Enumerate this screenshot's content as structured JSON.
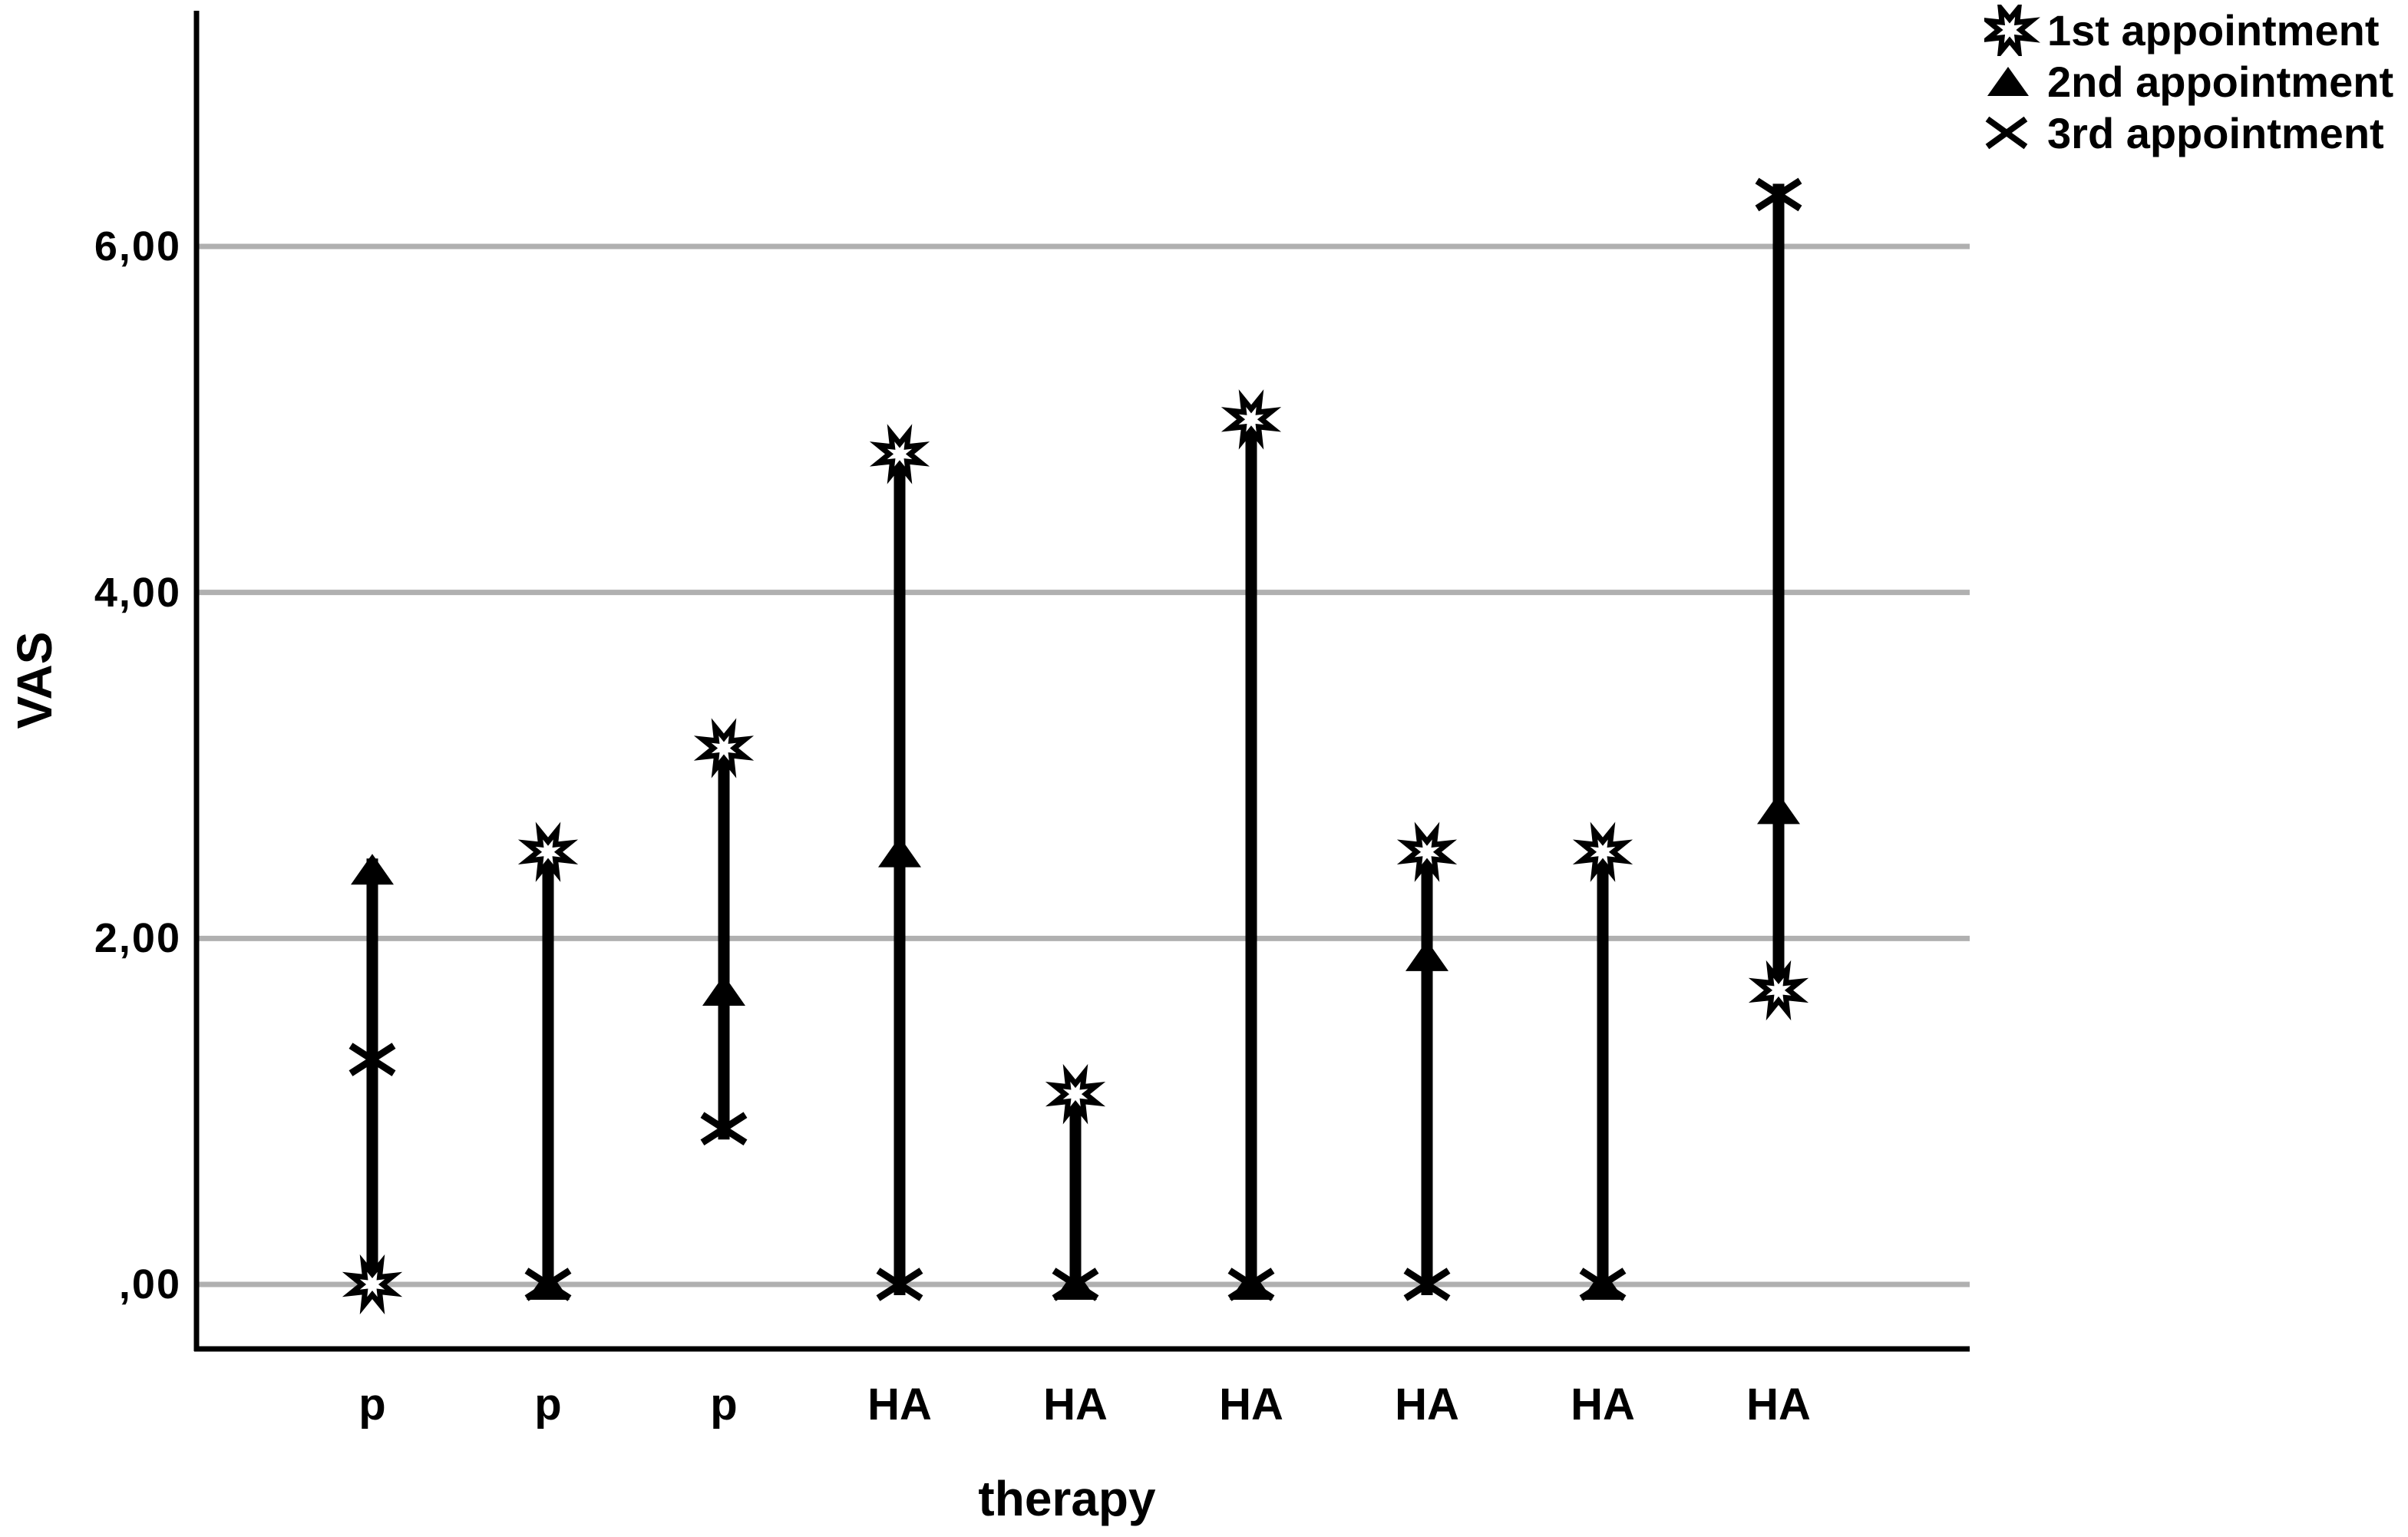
{
  "figure": {
    "background_color": "#ffffff",
    "text_color": "#000000",
    "gridline_color": "#b0b0b0",
    "line_color": "#000000"
  },
  "chart_data": {
    "type": "scatter",
    "subtype": "drop-line",
    "title": "",
    "xlabel": "therapy",
    "ylabel": "VAS",
    "categories": [
      "p",
      "p",
      "p",
      "HA",
      "HA",
      "HA",
      "HA",
      "HA",
      "HA"
    ],
    "series": [
      {
        "name": "1st appointment",
        "marker": "burst-star",
        "values": [
          0,
          2.5,
          3.1,
          4.8,
          1.1,
          5,
          2.5,
          2.5,
          1.7
        ]
      },
      {
        "name": "2nd appointment",
        "marker": "filled-triangle",
        "values": [
          2.4,
          0,
          1.7,
          2.5,
          0,
          0,
          1.9,
          0,
          2.75
        ]
      },
      {
        "name": "3rd appointment",
        "marker": "x-cross",
        "values": [
          1.3,
          0,
          0.9,
          0,
          0,
          0,
          0,
          0,
          6.3
        ]
      }
    ],
    "y_ticks": [
      {
        "value": 0,
        "label": ",00"
      },
      {
        "value": 2,
        "label": "2,00"
      },
      {
        "value": 4,
        "label": "4,00"
      },
      {
        "value": 6,
        "label": "6,00"
      }
    ],
    "ylim": [
      -0.37,
      7.36
    ],
    "grid": true,
    "legend_position": "top-right",
    "legend": [
      "1st appointment",
      "2nd appointment",
      "3rd appointment"
    ]
  }
}
